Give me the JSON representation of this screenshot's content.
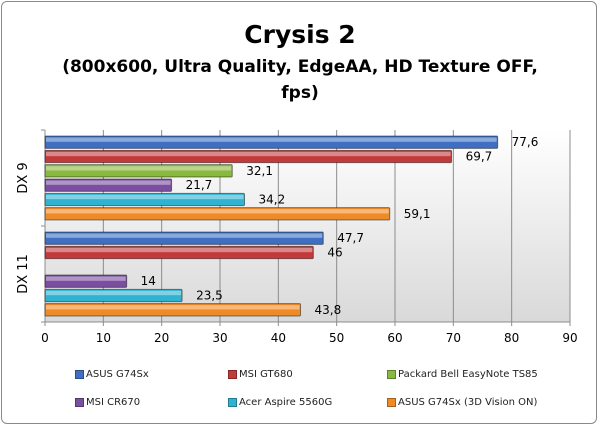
{
  "chart_data": {
    "type": "bar",
    "orientation": "horizontal",
    "title": "Crysis 2",
    "subtitle_line1": "(800x600, Ultra Quality, EdgeAA, HD Texture OFF,",
    "subtitle_line2": "fps)",
    "categories": [
      "DX 9",
      "DX 11"
    ],
    "xlim": [
      0,
      90
    ],
    "xticks": [
      0,
      10,
      20,
      30,
      40,
      50,
      60,
      70,
      80,
      90
    ],
    "grid": true,
    "legend_position": "bottom",
    "series": [
      {
        "name": "ASUS G74Sx",
        "color": "#3f6fc2",
        "values": [
          77.6,
          47.7
        ],
        "labels": [
          "77,6",
          "47,7"
        ]
      },
      {
        "name": "MSI GT680",
        "color": "#c23a3a",
        "values": [
          69.7,
          46
        ],
        "labels": [
          "69,7",
          "46"
        ]
      },
      {
        "name": "Packard Bell EasyNote TS85",
        "color": "#8ab93f",
        "values": [
          32.1,
          null
        ],
        "labels": [
          "32,1",
          null
        ]
      },
      {
        "name": "MSI CR670",
        "color": "#7a4fa0",
        "values": [
          21.7,
          14
        ],
        "labels": [
          "21,7",
          "14"
        ]
      },
      {
        "name": "Acer Aspire 5560G",
        "color": "#2fb3d1",
        "values": [
          34.2,
          23.5
        ],
        "labels": [
          "34,2",
          "23,5"
        ]
      },
      {
        "name": "ASUS G74Sx (3D Vision ON)",
        "color": "#f08a24",
        "values": [
          59.1,
          43.8
        ],
        "labels": [
          "59,1",
          "43,8"
        ]
      }
    ]
  }
}
